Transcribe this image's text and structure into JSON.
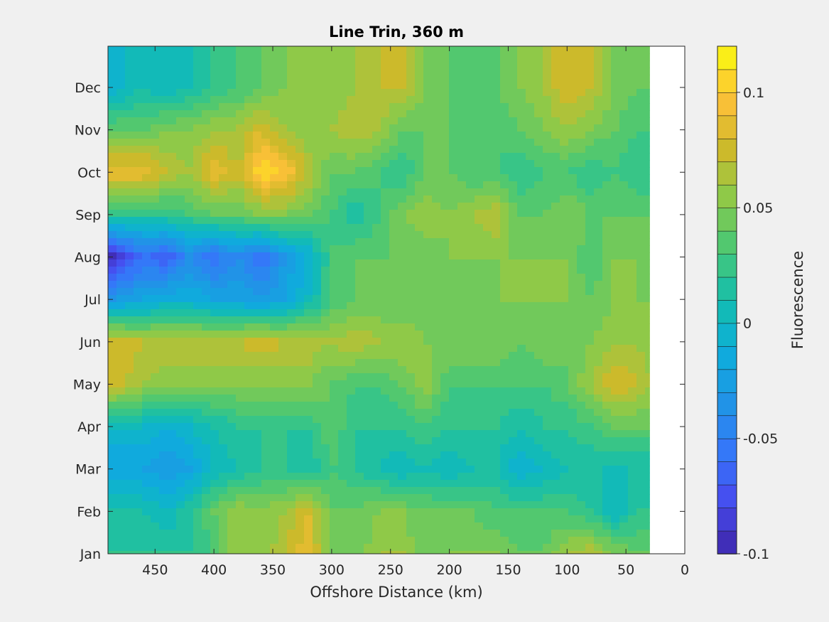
{
  "chart_data": {
    "type": "heatmap",
    "subtype": "filled-contour",
    "title": "Line Trin, 360 m",
    "xlabel": "Offshore Distance (km)",
    "ylabel": "",
    "xlim": [
      490,
      0
    ],
    "x_reversed": true,
    "x_ticks": [
      450,
      400,
      350,
      300,
      250,
      200,
      150,
      100,
      50,
      0
    ],
    "y_ticks": [
      "Jan",
      "Feb",
      "Mar",
      "Apr",
      "May",
      "Jun",
      "Jul",
      "Aug",
      "Sep",
      "Oct",
      "Nov",
      "Dec"
    ],
    "colorbar": {
      "label": "Fluorescence",
      "clim": [
        -0.1,
        0.12
      ],
      "levels": 22,
      "ticks": [
        -0.1,
        -0.05,
        0,
        0.05,
        0.1
      ],
      "tick_labels": [
        "-0.1",
        "-0.05",
        "0",
        "0.05",
        "0.1"
      ],
      "colormap": "parula"
    },
    "data_extent_x": [
      490,
      30
    ],
    "grid": false,
    "x_distance_km": [
      490,
      460,
      440,
      420,
      400,
      380,
      360,
      340,
      320,
      300,
      280,
      260,
      240,
      220,
      200,
      180,
      160,
      140,
      120,
      100,
      80,
      60,
      40,
      30
    ],
    "rows": [
      {
        "month": "Jan",
        "values": [
          0.02,
          0.02,
          0.02,
          0.02,
          0.03,
          0.06,
          0.05,
          0.07,
          0.09,
          0.04,
          0.04,
          0.06,
          0.06,
          0.04,
          0.05,
          0.05,
          0.05,
          0.04,
          0.04,
          0.06,
          0.07,
          0.05,
          0.04,
          0.04
        ]
      },
      {
        "month": "Feb",
        "values": [
          0.01,
          0.01,
          0.0,
          0.02,
          0.04,
          0.06,
          0.05,
          0.06,
          0.08,
          0.04,
          0.04,
          0.05,
          0.05,
          0.04,
          0.04,
          0.04,
          0.03,
          0.03,
          0.03,
          0.03,
          0.02,
          0.0,
          0.02,
          0.02
        ]
      },
      {
        "month": "Mar",
        "values": [
          -0.02,
          -0.02,
          -0.03,
          -0.02,
          0.0,
          0.01,
          0.02,
          0.02,
          0.01,
          0.03,
          0.02,
          0.01,
          0.0,
          0.01,
          0.0,
          0.01,
          0.01,
          -0.01,
          0.0,
          0.01,
          0.01,
          0.01,
          0.01,
          0.01
        ]
      },
      {
        "month": "Apr",
        "values": [
          0.0,
          0.0,
          -0.01,
          0.0,
          0.01,
          0.02,
          0.02,
          0.02,
          0.02,
          0.04,
          0.02,
          0.02,
          0.02,
          0.03,
          0.02,
          0.02,
          0.02,
          0.01,
          0.02,
          0.02,
          0.03,
          0.04,
          0.04,
          0.04
        ]
      },
      {
        "month": "May",
        "values": [
          0.08,
          0.06,
          0.05,
          0.05,
          0.05,
          0.05,
          0.05,
          0.05,
          0.05,
          0.04,
          0.03,
          0.03,
          0.04,
          0.06,
          0.03,
          0.03,
          0.03,
          0.03,
          0.03,
          0.04,
          0.06,
          0.08,
          0.07,
          0.06
        ]
      },
      {
        "month": "Jun",
        "values": [
          0.08,
          0.07,
          0.07,
          0.07,
          0.07,
          0.07,
          0.08,
          0.07,
          0.07,
          0.06,
          0.07,
          0.06,
          0.06,
          0.05,
          0.05,
          0.05,
          0.05,
          0.04,
          0.05,
          0.04,
          0.05,
          0.06,
          0.06,
          0.05
        ]
      },
      {
        "month": "Jul",
        "values": [
          -0.03,
          -0.02,
          -0.01,
          -0.01,
          -0.02,
          -0.02,
          -0.03,
          -0.02,
          0.0,
          0.03,
          0.04,
          0.04,
          0.04,
          0.04,
          0.04,
          0.04,
          0.05,
          0.05,
          0.05,
          0.05,
          0.04,
          0.05,
          0.05,
          0.05
        ]
      },
      {
        "month": "Aug",
        "values": [
          -0.1,
          -0.06,
          -0.07,
          -0.04,
          -0.06,
          -0.04,
          -0.06,
          -0.03,
          -0.01,
          0.03,
          0.04,
          0.04,
          0.04,
          0.04,
          0.05,
          0.05,
          0.05,
          0.05,
          0.05,
          0.05,
          0.03,
          0.05,
          0.05,
          0.04
        ]
      },
      {
        "month": "Sep",
        "values": [
          0.02,
          0.02,
          0.02,
          0.03,
          0.04,
          0.04,
          0.05,
          0.05,
          0.04,
          0.03,
          0.01,
          0.03,
          0.05,
          0.06,
          0.05,
          0.06,
          0.07,
          0.04,
          0.04,
          0.05,
          0.04,
          0.04,
          0.04,
          0.04
        ]
      },
      {
        "month": "Oct",
        "values": [
          0.09,
          0.09,
          0.07,
          0.06,
          0.09,
          0.07,
          0.11,
          0.1,
          0.07,
          0.04,
          0.04,
          0.03,
          0.02,
          0.04,
          0.04,
          0.03,
          0.03,
          0.02,
          0.03,
          0.03,
          0.02,
          0.03,
          0.02,
          0.02
        ]
      },
      {
        "month": "Nov",
        "values": [
          0.04,
          0.04,
          0.05,
          0.05,
          0.06,
          0.06,
          0.08,
          0.06,
          0.05,
          0.06,
          0.07,
          0.06,
          0.04,
          0.04,
          0.04,
          0.03,
          0.03,
          0.04,
          0.05,
          0.06,
          0.05,
          0.04,
          0.03,
          0.03
        ]
      },
      {
        "month": "Dec",
        "values": [
          -0.01,
          0.01,
          0.0,
          0.01,
          0.02,
          0.03,
          0.04,
          0.05,
          0.05,
          0.05,
          0.06,
          0.07,
          0.07,
          0.05,
          0.04,
          0.03,
          0.04,
          0.05,
          0.06,
          0.08,
          0.07,
          0.05,
          0.04,
          0.04
        ]
      }
    ]
  }
}
